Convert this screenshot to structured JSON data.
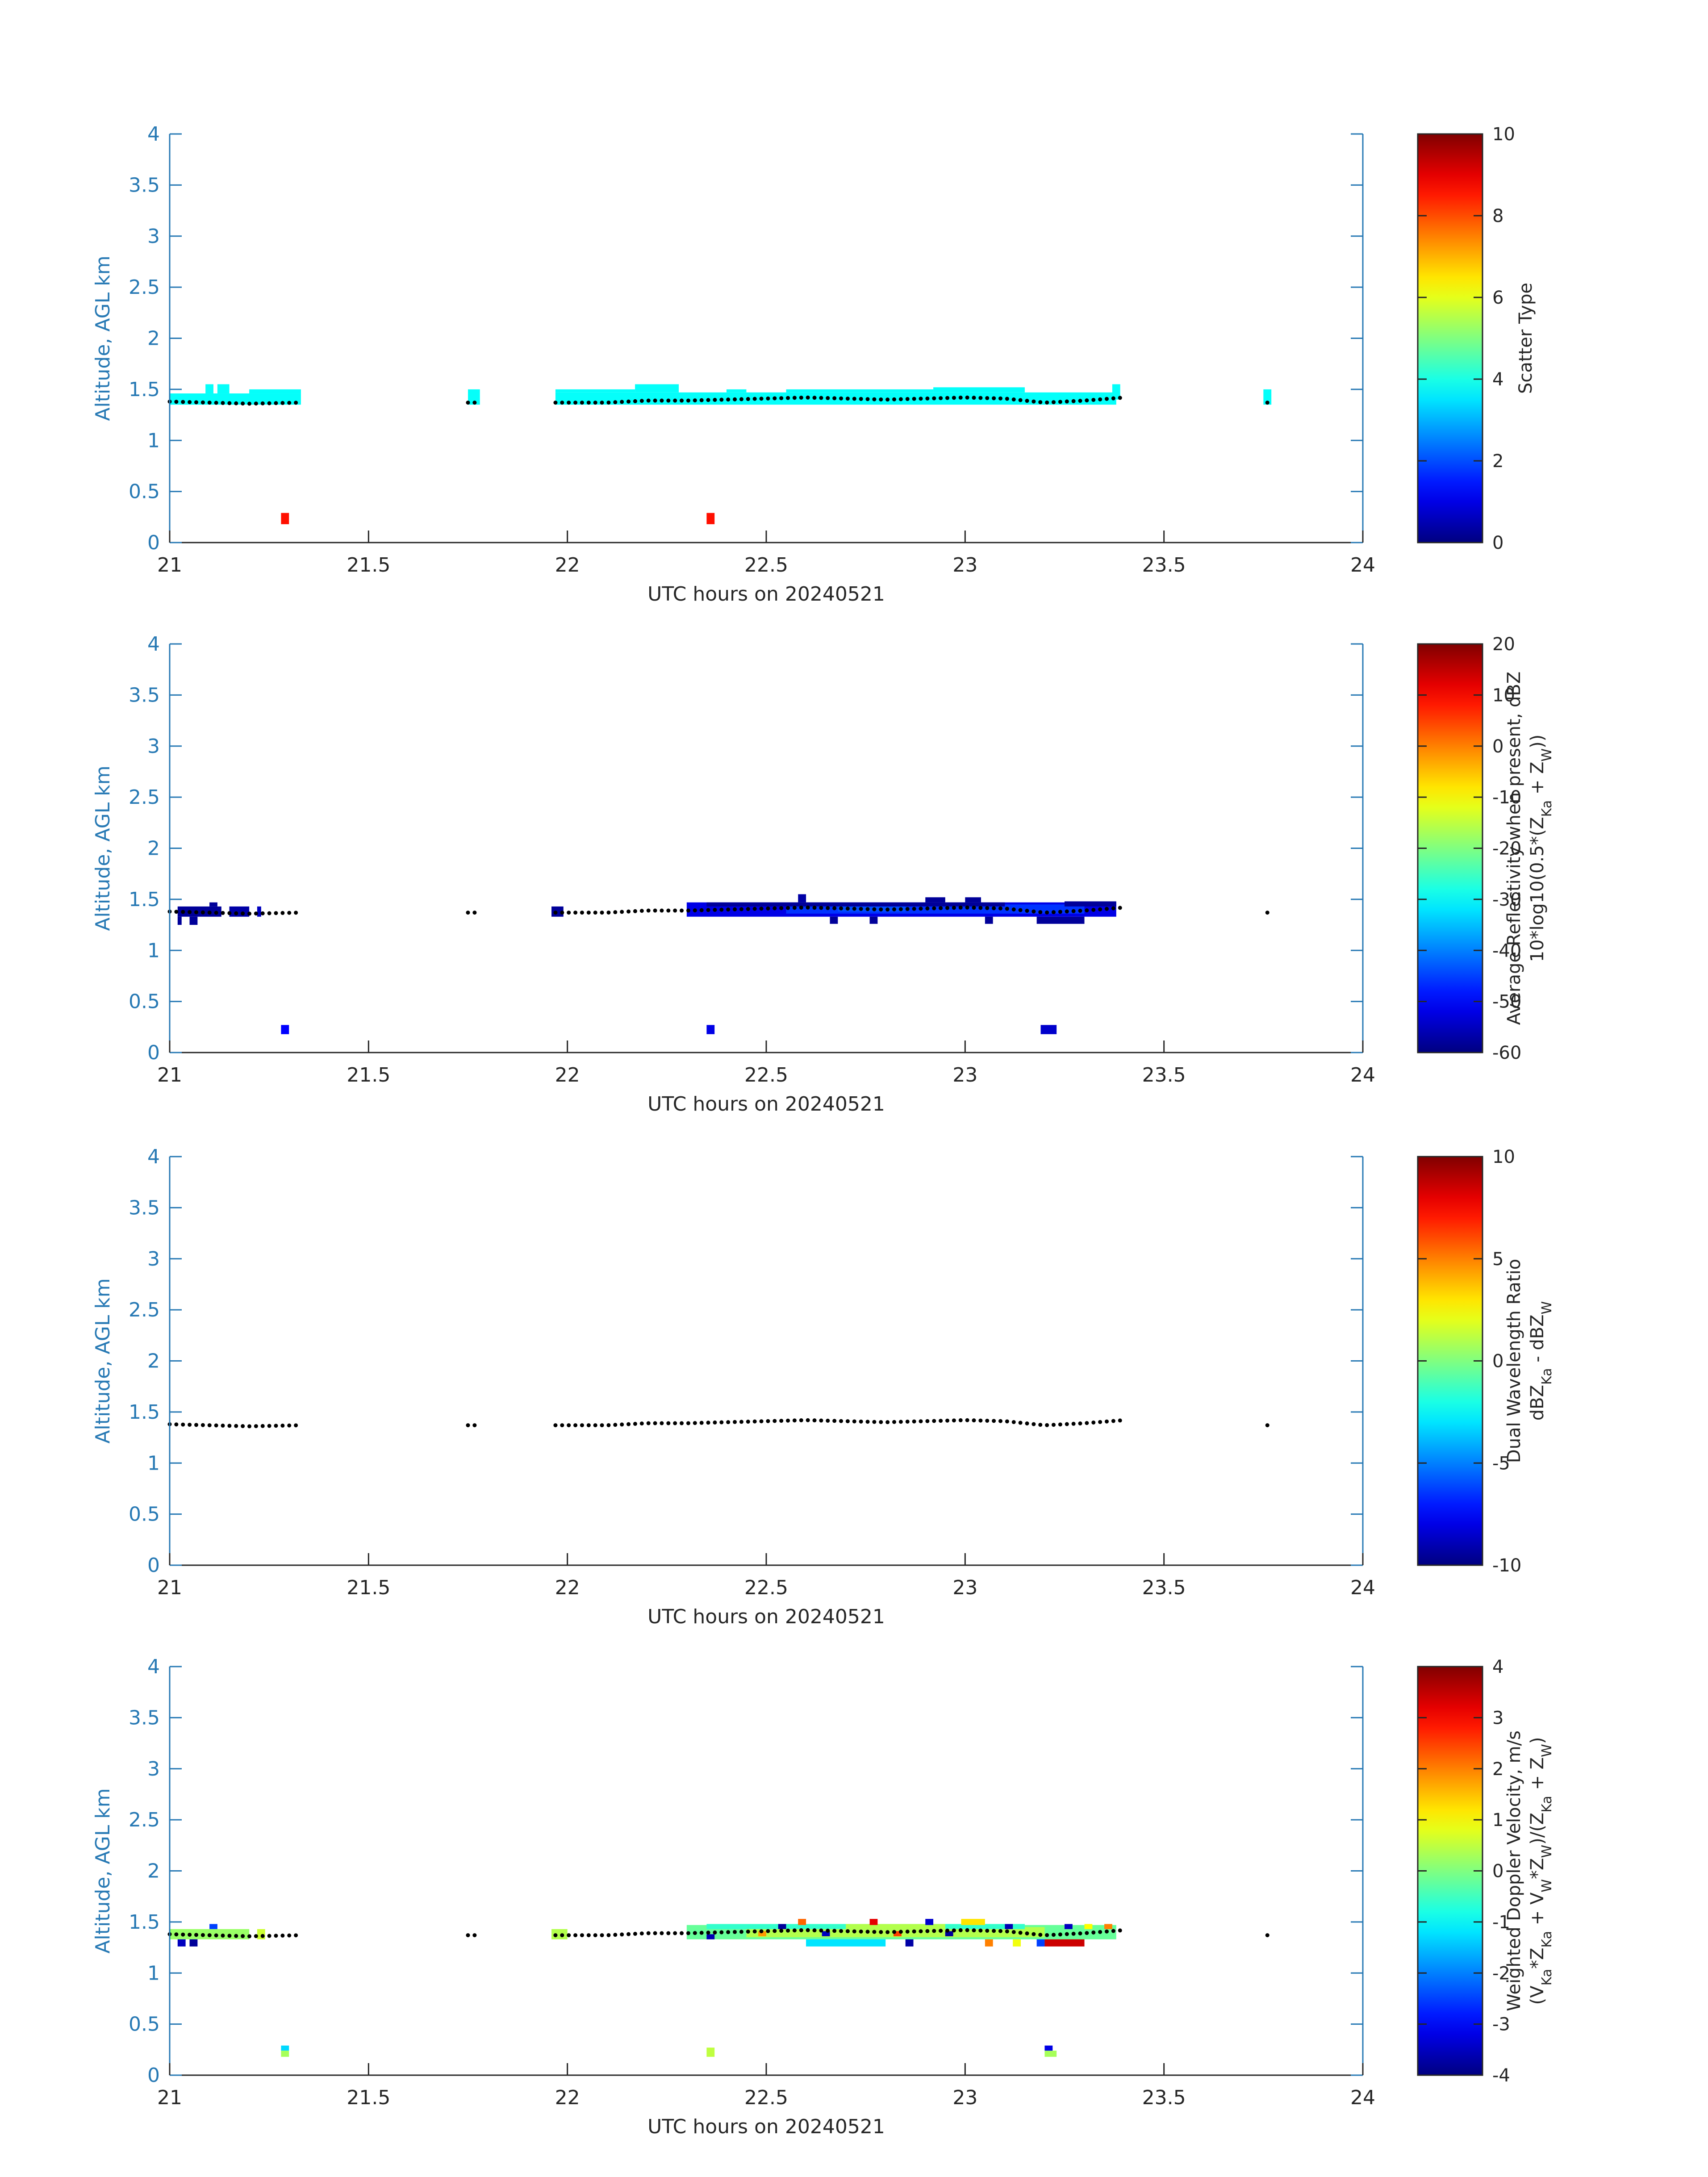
{
  "chart_data": [
    {
      "type": "heatmap",
      "xlabel": "UTC hours on 20240521",
      "ylabel": "Altitude, AGL km",
      "xlim": [
        21,
        24
      ],
      "ylim": [
        0,
        4
      ],
      "xticks": [
        "21",
        "21.5",
        "22",
        "22.5",
        "23",
        "23.5",
        "24"
      ],
      "yticks": [
        "0",
        "0.5",
        "1",
        "1.5",
        "2",
        "2.5",
        "3",
        "3.5",
        "4"
      ],
      "colorbar": {
        "label_lines": [
          "Scatter Type"
        ],
        "min": 0,
        "max": 10,
        "ticks": [
          "0",
          "2",
          "4",
          "6",
          "8",
          "10"
        ]
      },
      "cells": [
        [
          21.0,
          21.33,
          1.35,
          1.46,
          3.8
        ],
        [
          21.2,
          21.33,
          1.46,
          1.5,
          3.8
        ],
        [
          21.09,
          21.11,
          1.46,
          1.55,
          3.8
        ],
        [
          21.12,
          21.15,
          1.46,
          1.55,
          3.8
        ],
        [
          21.75,
          21.78,
          1.35,
          1.5,
          3.8
        ],
        [
          21.97,
          23.38,
          1.35,
          1.47,
          3.8
        ],
        [
          21.97,
          22.17,
          1.47,
          1.5,
          3.8
        ],
        [
          22.17,
          22.28,
          1.47,
          1.55,
          3.8
        ],
        [
          22.4,
          22.45,
          1.47,
          1.5,
          3.8
        ],
        [
          22.55,
          22.92,
          1.47,
          1.5,
          3.8
        ],
        [
          22.92,
          23.15,
          1.47,
          1.52,
          3.8
        ],
        [
          23.37,
          23.39,
          1.4,
          1.55,
          3.8
        ],
        [
          23.75,
          23.77,
          1.35,
          1.5,
          3.8
        ],
        [
          21.28,
          21.3,
          0.18,
          0.29,
          8.6
        ],
        [
          22.35,
          22.37,
          0.18,
          0.29,
          8.6
        ]
      ],
      "melt_layer": {
        "x": [
          21.0,
          21.1,
          21.2,
          21.33,
          21.75,
          21.78,
          21.97,
          22.1,
          22.2,
          22.3,
          22.4,
          22.5,
          22.6,
          22.7,
          22.8,
          22.9,
          23.0,
          23.1,
          23.2,
          23.3,
          23.4,
          23.76
        ],
        "y": [
          1.38,
          1.37,
          1.36,
          1.37,
          1.37,
          1.37,
          1.37,
          1.37,
          1.39,
          1.39,
          1.4,
          1.41,
          1.42,
          1.41,
          1.4,
          1.41,
          1.42,
          1.41,
          1.37,
          1.39,
          1.42,
          1.37
        ]
      }
    },
    {
      "type": "heatmap",
      "xlabel": "UTC hours on 20240521",
      "ylabel": "Altitude, AGL km",
      "xlim": [
        21,
        24
      ],
      "ylim": [
        0,
        4
      ],
      "xticks": [
        "21",
        "21.5",
        "22",
        "22.5",
        "23",
        "23.5",
        "24"
      ],
      "yticks": [
        "0",
        "0.5",
        "1",
        "1.5",
        "2",
        "2.5",
        "3",
        "3.5",
        "4"
      ],
      "colorbar": {
        "label_lines": [
          "Average Reflectivity when present, dBZ",
          "10*log10(0.5*(Z_Ka + Z_W))"
        ],
        "min": -60,
        "max": 20,
        "ticks": [
          "-60",
          "-50",
          "-40",
          "-30",
          "-20",
          "-10",
          "0",
          "10",
          "20"
        ]
      },
      "cells": [
        [
          21.02,
          21.13,
          1.33,
          1.43,
          -58
        ],
        [
          21.15,
          21.2,
          1.33,
          1.43,
          -57
        ],
        [
          21.22,
          21.23,
          1.33,
          1.43,
          -55
        ],
        [
          21.02,
          21.03,
          1.25,
          1.33,
          -58
        ],
        [
          21.05,
          21.07,
          1.25,
          1.33,
          -58
        ],
        [
          21.1,
          21.12,
          1.43,
          1.47,
          -58
        ],
        [
          21.28,
          21.3,
          0.18,
          0.27,
          -50
        ],
        [
          21.96,
          21.99,
          1.33,
          1.43,
          -58
        ],
        [
          22.3,
          23.38,
          1.33,
          1.47,
          -52
        ],
        [
          22.55,
          23.3,
          1.36,
          1.45,
          -46
        ],
        [
          22.68,
          22.85,
          1.38,
          1.44,
          -44
        ],
        [
          22.35,
          23.1,
          1.43,
          1.47,
          -58
        ],
        [
          22.9,
          22.95,
          1.47,
          1.52,
          -58
        ],
        [
          23.0,
          23.04,
          1.47,
          1.52,
          -58
        ],
        [
          22.58,
          22.6,
          1.47,
          1.55,
          -57
        ],
        [
          23.25,
          23.38,
          1.43,
          1.48,
          -58
        ],
        [
          22.66,
          22.68,
          1.26,
          1.33,
          -58
        ],
        [
          22.76,
          22.78,
          1.26,
          1.33,
          -58
        ],
        [
          23.05,
          23.07,
          1.26,
          1.33,
          -58
        ],
        [
          23.18,
          23.3,
          1.26,
          1.33,
          -58
        ],
        [
          22.35,
          22.37,
          0.18,
          0.27,
          -52
        ],
        [
          23.19,
          23.23,
          0.18,
          0.27,
          -54
        ]
      ],
      "melt_layer": {
        "x": [
          21.0,
          21.1,
          21.2,
          21.33,
          21.75,
          21.78,
          21.97,
          22.1,
          22.2,
          22.3,
          22.4,
          22.5,
          22.6,
          22.7,
          22.8,
          22.9,
          23.0,
          23.1,
          23.2,
          23.3,
          23.4,
          23.76
        ],
        "y": [
          1.38,
          1.37,
          1.36,
          1.37,
          1.37,
          1.37,
          1.37,
          1.37,
          1.39,
          1.39,
          1.4,
          1.41,
          1.42,
          1.41,
          1.4,
          1.41,
          1.42,
          1.41,
          1.37,
          1.39,
          1.42,
          1.37
        ]
      }
    },
    {
      "type": "heatmap",
      "xlabel": "UTC hours on 20240521",
      "ylabel": "Altitude, AGL km",
      "xlim": [
        21,
        24
      ],
      "ylim": [
        0,
        4
      ],
      "xticks": [
        "21",
        "21.5",
        "22",
        "22.5",
        "23",
        "23.5",
        "24"
      ],
      "yticks": [
        "0",
        "0.5",
        "1",
        "1.5",
        "2",
        "2.5",
        "3",
        "3.5",
        "4"
      ],
      "colorbar": {
        "label_lines": [
          "Dual Wavelength Ratio",
          "dBZ_Ka - dBZ_W"
        ],
        "min": -10,
        "max": 10,
        "ticks": [
          "-10",
          "-5",
          "0",
          "5",
          "10"
        ]
      },
      "cells": [],
      "melt_layer": {
        "x": [
          21.0,
          21.1,
          21.2,
          21.33,
          21.75,
          21.78,
          21.97,
          22.1,
          22.2,
          22.3,
          22.4,
          22.5,
          22.6,
          22.7,
          22.8,
          22.9,
          23.0,
          23.1,
          23.2,
          23.3,
          23.4,
          23.76
        ],
        "y": [
          1.38,
          1.37,
          1.36,
          1.37,
          1.37,
          1.37,
          1.37,
          1.37,
          1.39,
          1.39,
          1.4,
          1.41,
          1.42,
          1.41,
          1.4,
          1.41,
          1.42,
          1.41,
          1.37,
          1.39,
          1.42,
          1.37
        ]
      }
    },
    {
      "type": "heatmap",
      "xlabel": "UTC hours on 20240521",
      "ylabel": "Altitude, AGL km",
      "xlim": [
        21,
        24
      ],
      "ylim": [
        0,
        4
      ],
      "xticks": [
        "21",
        "21.5",
        "22",
        "22.5",
        "23",
        "23.5",
        "24"
      ],
      "yticks": [
        "0",
        "0.5",
        "1",
        "1.5",
        "2",
        "2.5",
        "3",
        "3.5",
        "4"
      ],
      "colorbar": {
        "label_lines": [
          "Weighted Doppler Velocity, m/s",
          "(V_Ka*Z_Ka + V_W*Z_W)/(Z_Ka + Z_W)"
        ],
        "min": -4,
        "max": 4,
        "ticks": [
          "-4",
          "-3",
          "-2",
          "-1",
          "0",
          "1",
          "2",
          "3",
          "4"
        ]
      },
      "cells": [
        [
          21.0,
          21.2,
          1.33,
          1.43,
          0.2
        ],
        [
          21.22,
          21.24,
          1.33,
          1.43,
          0.6
        ],
        [
          21.02,
          21.04,
          1.26,
          1.33,
          -3.5
        ],
        [
          21.05,
          21.07,
          1.26,
          1.33,
          -3.8
        ],
        [
          21.1,
          21.12,
          1.43,
          1.48,
          -2.5
        ],
        [
          21.28,
          21.3,
          0.24,
          0.29,
          -1.3
        ],
        [
          21.28,
          21.3,
          0.18,
          0.24,
          0.3
        ],
        [
          21.96,
          22.0,
          1.33,
          1.43,
          0.4
        ],
        [
          22.3,
          23.38,
          1.33,
          1.47,
          -0.2
        ],
        [
          22.45,
          23.2,
          1.35,
          1.45,
          0.4
        ],
        [
          22.35,
          23.15,
          1.43,
          1.48,
          -0.6
        ],
        [
          22.7,
          22.95,
          1.43,
          1.48,
          0.4
        ],
        [
          22.6,
          22.8,
          1.26,
          1.33,
          -1.2
        ],
        [
          22.35,
          22.37,
          1.33,
          1.38,
          -3.6
        ],
        [
          22.48,
          22.5,
          1.36,
          1.41,
          1.8
        ],
        [
          22.53,
          22.55,
          1.43,
          1.48,
          -3.8
        ],
        [
          22.58,
          22.6,
          1.47,
          1.53,
          2.2
        ],
        [
          22.64,
          22.66,
          1.36,
          1.41,
          -3.5
        ],
        [
          22.76,
          22.78,
          1.47,
          1.53,
          3.2
        ],
        [
          22.82,
          22.84,
          1.36,
          1.41,
          2.5
        ],
        [
          22.85,
          22.87,
          1.26,
          1.33,
          -3.7
        ],
        [
          22.9,
          22.92,
          1.47,
          1.53,
          -3.4
        ],
        [
          22.95,
          22.97,
          1.36,
          1.41,
          -3.8
        ],
        [
          22.99,
          23.05,
          1.47,
          1.53,
          1.2
        ],
        [
          23.05,
          23.07,
          1.26,
          1.33,
          2.0
        ],
        [
          23.1,
          23.12,
          1.43,
          1.48,
          -3.6
        ],
        [
          23.12,
          23.14,
          1.26,
          1.33,
          0.9
        ],
        [
          23.18,
          23.2,
          1.26,
          1.33,
          -2.5
        ],
        [
          23.2,
          23.3,
          1.26,
          1.33,
          3.4
        ],
        [
          23.25,
          23.27,
          1.43,
          1.48,
          -3.5
        ],
        [
          23.3,
          23.32,
          1.43,
          1.48,
          1.0
        ],
        [
          23.35,
          23.37,
          1.43,
          1.48,
          2.0
        ],
        [
          22.35,
          22.37,
          0.18,
          0.27,
          0.5
        ],
        [
          23.2,
          23.23,
          0.18,
          0.24,
          0.3
        ],
        [
          23.2,
          23.22,
          0.24,
          0.29,
          -3.2
        ]
      ],
      "melt_layer": {
        "x": [
          21.0,
          21.1,
          21.2,
          21.33,
          21.75,
          21.78,
          21.97,
          22.1,
          22.2,
          22.3,
          22.4,
          22.5,
          22.6,
          22.7,
          22.8,
          22.9,
          23.0,
          23.1,
          23.2,
          23.3,
          23.4,
          23.76
        ],
        "y": [
          1.38,
          1.37,
          1.36,
          1.37,
          1.37,
          1.37,
          1.37,
          1.37,
          1.39,
          1.39,
          1.4,
          1.41,
          1.42,
          1.41,
          1.4,
          1.41,
          1.42,
          1.41,
          1.37,
          1.39,
          1.42,
          1.37
        ]
      }
    }
  ]
}
